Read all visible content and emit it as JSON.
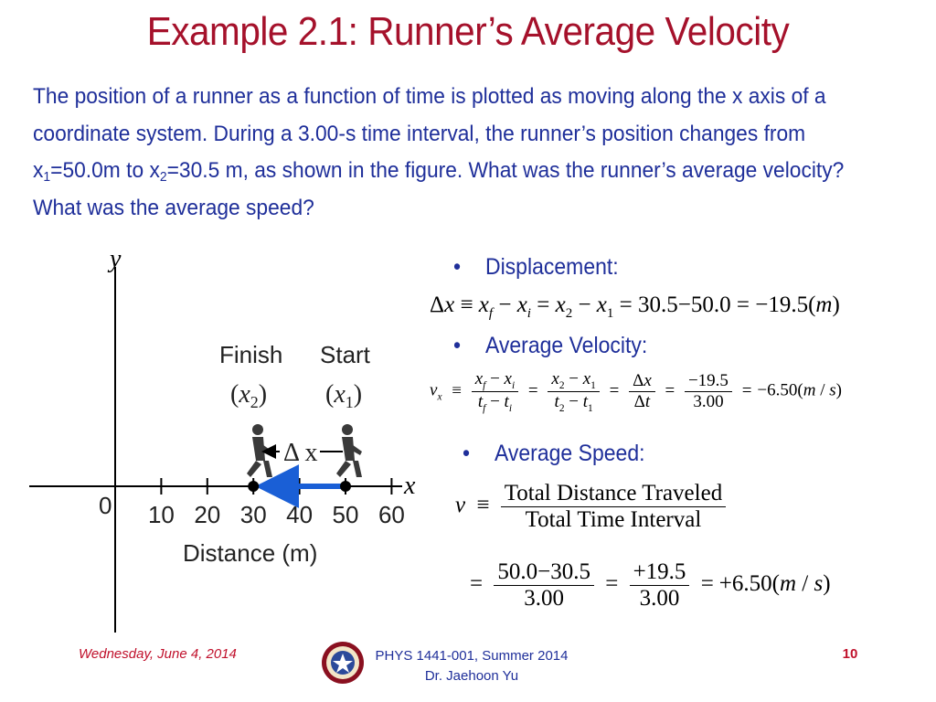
{
  "title": "Example 2.1: Runner’s Average Velocity",
  "problem": {
    "text_a": "The position of a runner as a function of time is plotted as moving along the x axis of a coordinate system.  During a 3.00-s time interval, the runner’s position changes from x",
    "sub_a": "1",
    "text_b": "=50.0m to x",
    "sub_b": "2",
    "text_c": "=30.5 m, as shown in the figure.  What was the runner’s average velocity?  What was the average speed?"
  },
  "figure": {
    "y_label": "y",
    "x_label": "x",
    "origin_label": "0",
    "tick_labels": [
      "10",
      "20",
      "30",
      "40",
      "50",
      "60"
    ],
    "axis_title": "Distance (m)",
    "finish_label": "Finish",
    "finish_sub": "(x2)",
    "start_label": "Start",
    "start_sub": "(x1)",
    "delta_label": "Δ x",
    "arrow_color": "#1a5fd6",
    "start_x": 50,
    "finish_x": 30
  },
  "sections": {
    "displacement": "Displacement:",
    "avg_velocity": "Average Velocity:",
    "avg_speed": "Average Speed:"
  },
  "equations": {
    "disp_result": "30.5−50.0 = −19.5(",
    "vel_num": "−19.5",
    "vel_den": "3.00",
    "vel_result": "−6.50(",
    "speed_num_text": "Total Distance Traveled",
    "speed_den_text": "Total Time Interval",
    "speed_num_vals": "50.0−30.5",
    "speed_den_vals": "3.00",
    "speed_num2": "+19.5",
    "speed_den2": "3.00",
    "speed_result": "+6.50("
  },
  "footer": {
    "date": "Wednesday, June 4, 2014",
    "course": "PHYS 1441-001, Summer 2014",
    "instructor": "Dr. Jaehoon Yu",
    "page": "10"
  }
}
